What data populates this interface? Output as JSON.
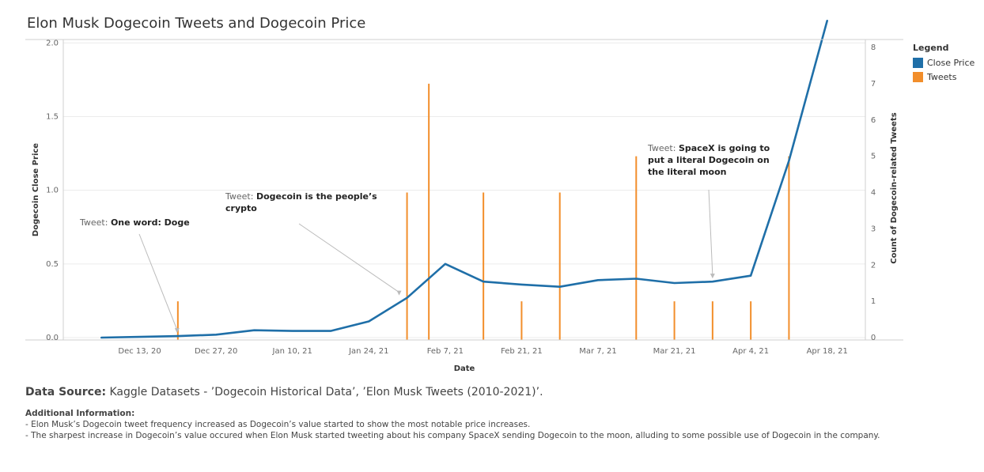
{
  "title": "Elon Musk Dogecoin Tweets and Dogecoin Price",
  "legend": {
    "title": "Legend",
    "items": [
      {
        "label": "Close Price",
        "color": "#1f6fa8"
      },
      {
        "label": "Tweets",
        "color": "#f28e2b"
      }
    ]
  },
  "chart_data": {
    "type": "line+bar",
    "xlabel": "Date",
    "ylabel_left": "Dogecoin Close Price",
    "ylabel_right": "Count of Dogecoin-related Tweets",
    "ylim_left": [
      0,
      2.2
    ],
    "ylim_right": [
      0,
      8
    ],
    "left_ticks": [
      "0.0",
      "0.5",
      "1.0",
      "1.5",
      "2.0"
    ],
    "right_ticks": [
      "0",
      "1",
      "2",
      "3",
      "4",
      "5",
      "6",
      "7",
      "8"
    ],
    "x_ticks": [
      "Dec 13, 20",
      "Dec 27, 20",
      "Jan 10, 21",
      "Jan 24, 21",
      "Feb 7, 21",
      "Feb 21, 21",
      "Mar 7, 21",
      "Mar 21, 21",
      "Apr 4, 21",
      "Apr 18, 21"
    ],
    "grid": true,
    "legend_position": "right",
    "series": [
      {
        "name": "Close Price",
        "color": "#1f6fa8",
        "kind": "line",
        "points": [
          {
            "date": "2020-12-06",
            "value": 0.0
          },
          {
            "date": "2020-12-13",
            "value": 0.005
          },
          {
            "date": "2020-12-20",
            "value": 0.01
          },
          {
            "date": "2020-12-27",
            "value": 0.02
          },
          {
            "date": "2021-01-03",
            "value": 0.05
          },
          {
            "date": "2021-01-10",
            "value": 0.045
          },
          {
            "date": "2021-01-17",
            "value": 0.045
          },
          {
            "date": "2021-01-24",
            "value": 0.11
          },
          {
            "date": "2021-01-31",
            "value": 0.27
          },
          {
            "date": "2021-02-07",
            "value": 0.5
          },
          {
            "date": "2021-02-14",
            "value": 0.38
          },
          {
            "date": "2021-02-21",
            "value": 0.36
          },
          {
            "date": "2021-02-28",
            "value": 0.345
          },
          {
            "date": "2021-03-07",
            "value": 0.39
          },
          {
            "date": "2021-03-14",
            "value": 0.4
          },
          {
            "date": "2021-03-21",
            "value": 0.37
          },
          {
            "date": "2021-03-28",
            "value": 0.38
          },
          {
            "date": "2021-04-04",
            "value": 0.42
          },
          {
            "date": "2021-04-11",
            "value": 1.2
          },
          {
            "date": "2021-04-18",
            "value": 2.15
          }
        ]
      },
      {
        "name": "Tweets",
        "color": "#f28e2b",
        "kind": "bar",
        "points": [
          {
            "date": "2020-12-20",
            "value": 1
          },
          {
            "date": "2021-01-31",
            "value": 4
          },
          {
            "date": "2021-02-04",
            "value": 7
          },
          {
            "date": "2021-02-14",
            "value": 4
          },
          {
            "date": "2021-02-21",
            "value": 1
          },
          {
            "date": "2021-02-28",
            "value": 4
          },
          {
            "date": "2021-03-14",
            "value": 5
          },
          {
            "date": "2021-03-21",
            "value": 1
          },
          {
            "date": "2021-03-28",
            "value": 1
          },
          {
            "date": "2021-04-04",
            "value": 1
          },
          {
            "date": "2021-04-11",
            "value": 5
          }
        ]
      }
    ],
    "annotations": [
      {
        "label": "Tweet:",
        "text": [
          "One word: Doge"
        ],
        "date": "2020-12-20",
        "value": 0.01
      },
      {
        "label": "Tweet:",
        "text": [
          "Dogecoin is the people’s",
          "crypto"
        ],
        "date": "2021-01-31",
        "value": 0.27
      },
      {
        "label": "Tweet:",
        "text": [
          "SpaceX is going to",
          "put a literal Dogecoin on",
          "the literal moon"
        ],
        "date": "2021-03-28",
        "value": 0.38
      }
    ]
  },
  "footer": {
    "source_label": "Data Source:",
    "source_text": " Kaggle Datasets - ’Dogecoin Historical Data’, ’Elon Musk Tweets (2010-2021)’.",
    "additional_title": "Additional Information:",
    "additional_lines": [
      "- Elon Musk’s Dogecoin tweet frequency increased as Dogecoin’s value started to show the most notable price increases.",
      "- The sharpest increase in Dogecoin’s value occured when Elon Musk started tweeting about his company SpaceX sending Dogecoin to the moon, alluding to some possible use of Dogecoin in the company."
    ]
  }
}
